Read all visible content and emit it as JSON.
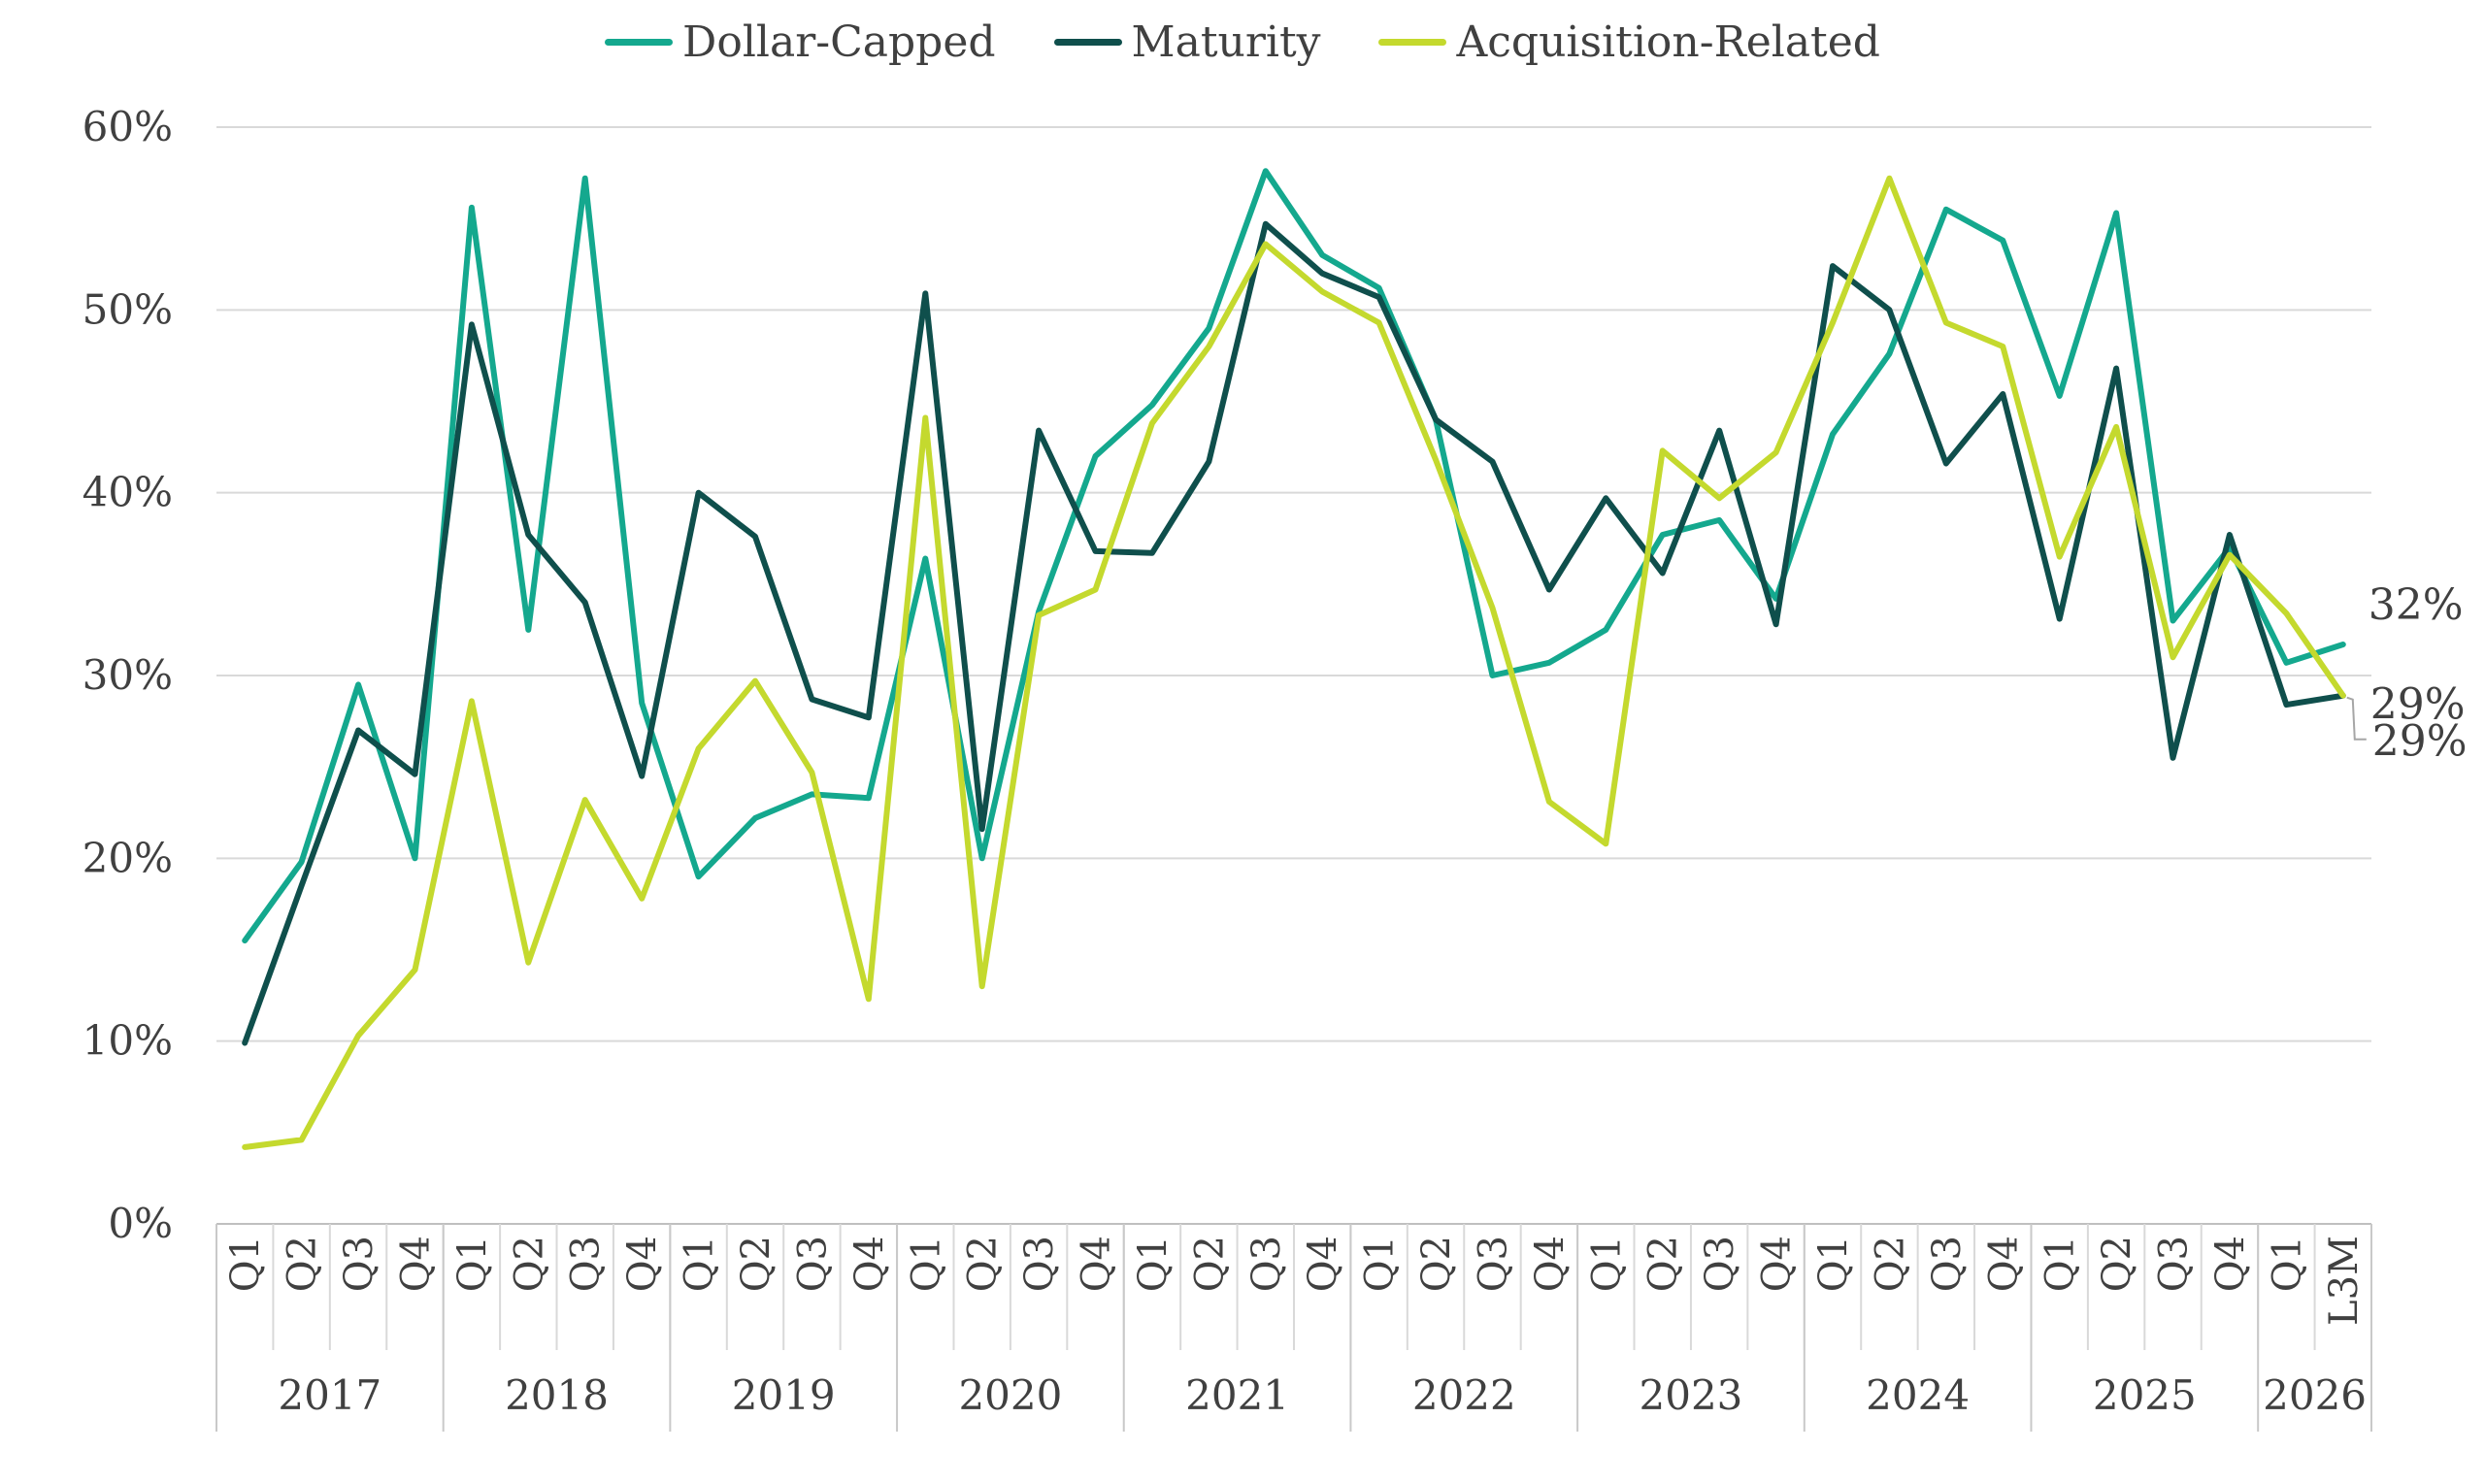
{
  "chart_data": {
    "type": "line",
    "title": "",
    "xlabel": "",
    "ylabel": "",
    "ylim": [
      0,
      60
    ],
    "y_tick_labels": [
      "0%",
      "10%",
      "20%",
      "30%",
      "40%",
      "50%",
      "60%"
    ],
    "grid": true,
    "legend_position": "top-center",
    "categories": [
      "Q1",
      "Q2",
      "Q3",
      "Q4",
      "Q1",
      "Q2",
      "Q3",
      "Q4",
      "Q1",
      "Q2",
      "Q3",
      "Q4",
      "Q1",
      "Q2",
      "Q3",
      "Q4",
      "Q1",
      "Q2",
      "Q3",
      "Q4",
      "Q1",
      "Q2",
      "Q3",
      "Q4",
      "Q1",
      "Q2",
      "Q3",
      "Q4",
      "Q1",
      "Q2",
      "Q3",
      "Q4",
      "Q1",
      "Q2",
      "Q3",
      "Q4",
      "Q1",
      "L3M"
    ],
    "groups": [
      {
        "label": "2017",
        "count": 4
      },
      {
        "label": "2018",
        "count": 4
      },
      {
        "label": "2019",
        "count": 4
      },
      {
        "label": "2020",
        "count": 4
      },
      {
        "label": "2021",
        "count": 4
      },
      {
        "label": "2022",
        "count": 4
      },
      {
        "label": "2023",
        "count": 4
      },
      {
        "label": "2024",
        "count": 4
      },
      {
        "label": "2025",
        "count": 4
      },
      {
        "label": "2026",
        "count": 2
      }
    ],
    "series": [
      {
        "name": "Dollar-Capped",
        "color": "#14a88e",
        "values": [
          15.5,
          19.8,
          29.5,
          20.0,
          55.6,
          32.5,
          57.2,
          28.5,
          19.0,
          22.2,
          23.5,
          23.3,
          36.4,
          20.0,
          33.5,
          42.0,
          44.8,
          49.0,
          57.6,
          53.0,
          51.2,
          44.0,
          30.0,
          30.7,
          32.5,
          37.7,
          38.5,
          34.2,
          43.2,
          47.6,
          55.5,
          53.8,
          45.3,
          55.3,
          33.0,
          37.0,
          30.7,
          31.7
        ],
        "end_label": "32%"
      },
      {
        "name": "Maturity",
        "color": "#0f4f4c",
        "values": [
          9.9,
          18.5,
          27.0,
          24.6,
          49.2,
          37.7,
          34.0,
          24.5,
          40.0,
          37.6,
          28.7,
          27.7,
          50.9,
          21.6,
          43.4,
          36.8,
          36.7,
          41.7,
          54.7,
          52.0,
          50.7,
          44.0,
          41.7,
          34.7,
          39.7,
          35.6,
          43.4,
          32.8,
          52.4,
          50.0,
          41.6,
          45.4,
          33.1,
          46.8,
          25.5,
          37.7,
          28.4,
          28.9
        ],
        "end_label": "29%"
      },
      {
        "name": "Acquisition-Related",
        "color": "#c4d92e",
        "values": [
          4.2,
          4.6,
          10.3,
          13.9,
          28.6,
          14.3,
          23.2,
          17.8,
          26.0,
          29.7,
          24.7,
          12.3,
          44.1,
          13.0,
          33.3,
          34.7,
          43.8,
          48.0,
          53.6,
          51.0,
          49.3,
          41.8,
          33.7,
          23.1,
          20.8,
          42.3,
          39.7,
          42.2,
          49.3,
          57.2,
          49.3,
          48.0,
          36.5,
          43.6,
          31.0,
          36.6,
          33.4,
          28.9
        ],
        "end_label": "29%"
      }
    ]
  }
}
